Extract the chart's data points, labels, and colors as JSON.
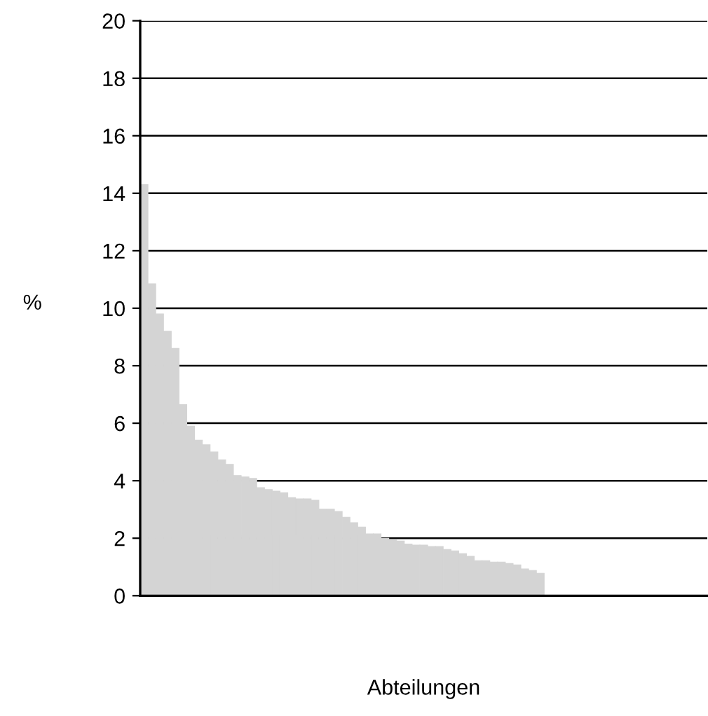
{
  "chart_data": {
    "type": "bar",
    "xlabel": "Abteilungen",
    "ylabel": "%",
    "categories": [
      null,
      null,
      null,
      null,
      null,
      null,
      null,
      null,
      null,
      null,
      null,
      null,
      null,
      null,
      null,
      null,
      null,
      null,
      null,
      null,
      null,
      null,
      null,
      null,
      null,
      null,
      null,
      null,
      null,
      null,
      null,
      null,
      null,
      null,
      null,
      null,
      null,
      null,
      null,
      null,
      null,
      null,
      null,
      null,
      null,
      null,
      null,
      null,
      null,
      null,
      null,
      null,
      null,
      null,
      null,
      null,
      null,
      null,
      null,
      null,
      null,
      null,
      null,
      null,
      null,
      null,
      null,
      null,
      null,
      null,
      null,
      null,
      null
    ],
    "values": [
      14.3,
      10.85,
      9.8,
      9.2,
      8.6,
      6.65,
      5.9,
      5.41,
      5.25,
      5.0,
      4.73,
      4.57,
      4.18,
      4.13,
      4.08,
      3.76,
      3.69,
      3.64,
      3.58,
      3.41,
      3.37,
      3.37,
      3.32,
      3.01,
      3.01,
      2.93,
      2.73,
      2.54,
      2.39,
      2.15,
      2.15,
      2.0,
      1.95,
      1.9,
      1.8,
      1.76,
      1.76,
      1.71,
      1.71,
      1.61,
      1.56,
      1.46,
      1.37,
      1.22,
      1.22,
      1.17,
      1.17,
      1.12,
      1.07,
      0.93,
      0.88,
      0.78,
      null,
      null,
      null,
      null,
      null,
      null,
      null,
      null,
      null,
      null,
      null,
      null,
      null,
      null,
      null,
      null,
      null,
      null,
      null,
      null,
      null
    ],
    "color": "#d4d4d4",
    "ylim": [
      0,
      20
    ],
    "yticks": [
      0,
      2,
      4,
      6,
      8,
      10,
      12,
      14,
      16,
      18,
      20
    ],
    "grid": "y",
    "legend": false
  }
}
